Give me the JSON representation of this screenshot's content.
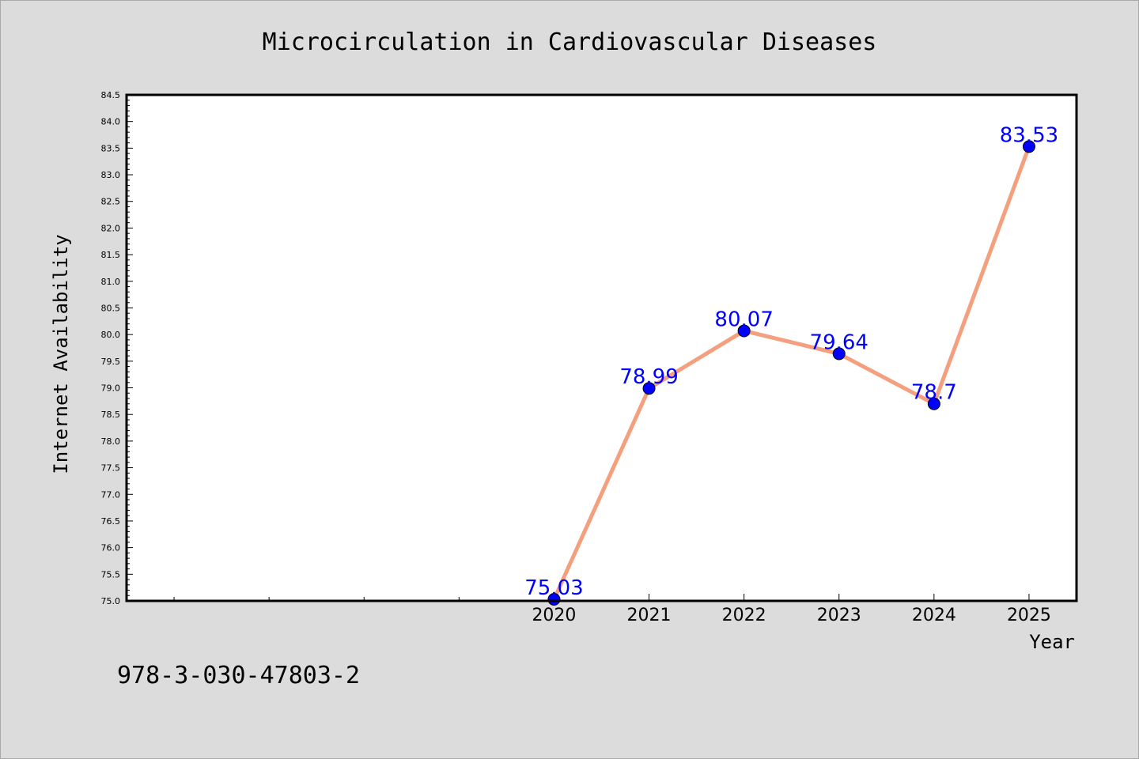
{
  "chart_data": {
    "type": "line",
    "title": "Microcirculation in Cardiovascular Diseases",
    "xlabel": "Year",
    "ylabel": "Internet Availability",
    "x": [
      2020,
      2021,
      2022,
      2023,
      2024,
      2025
    ],
    "xtick_labels": [
      "2020",
      "2021",
      "2022",
      "2023",
      "2024",
      "2025"
    ],
    "series": [
      {
        "values": [
          75.03,
          78.99,
          80.07,
          79.64,
          78.7,
          83.53
        ],
        "data_labels": [
          "75.03",
          "78.99",
          "80.07",
          "79.64",
          "78.7",
          "83.53"
        ],
        "line_color": "#f4a07e",
        "marker_color": "#0000ff"
      }
    ],
    "ylim": [
      75.0,
      84.5
    ],
    "xlim": [
      2015.5,
      2025.5
    ],
    "ytick_values": [
      75.0,
      75.5,
      76.0,
      76.5,
      77.0,
      77.5,
      78.0,
      78.5,
      79.0,
      79.5,
      80.0,
      80.5,
      81.0,
      81.5,
      82.0,
      82.5,
      83.0,
      83.5,
      84.0,
      84.5
    ],
    "ytick_labels": [
      "75.0",
      "75.5",
      "76.0",
      "76.5",
      "77.0",
      "77.5",
      "78.0",
      "78.5",
      "79.0",
      "79.5",
      "80.0",
      "80.5",
      "81.0",
      "81.5",
      "82.0",
      "82.5",
      "83.0",
      "83.5",
      "84.0",
      "84.5"
    ],
    "minor_xtick_values": [
      2016,
      2017,
      2018,
      2019
    ],
    "grid": false,
    "legend": "none",
    "background_color": "#dcdcdc",
    "plot_background_color": "#ffffff",
    "label_color": "#0000ff"
  },
  "footer": {
    "isbn": "978-3-030-47803-2"
  }
}
